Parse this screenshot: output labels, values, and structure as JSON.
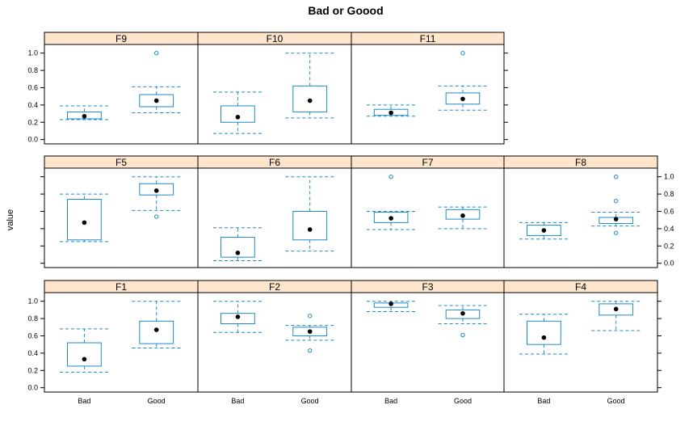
{
  "chart_data": {
    "type": "boxplot",
    "title": "Bad or Goood",
    "ylabel": "value",
    "categories": [
      "Bad",
      "Good"
    ],
    "ylim": [
      -0.05,
      1.1
    ],
    "yticks": [
      0.0,
      0.2,
      0.4,
      0.6,
      0.8,
      1.0
    ],
    "colors": {
      "box": "#1f8ac8",
      "strip": "#ffe5cc",
      "median": "#000000",
      "frame": "#000000"
    },
    "panels": [
      {
        "name": "F1",
        "boxes": [
          {
            "category": "Bad",
            "whisker_low": 0.18,
            "q1": 0.25,
            "q3": 0.52,
            "whisker_high": 0.68,
            "median": 0.33,
            "outliers": []
          },
          {
            "category": "Good",
            "whisker_low": 0.46,
            "q1": 0.51,
            "q3": 0.77,
            "whisker_high": 1.0,
            "median": 0.67,
            "outliers": []
          }
        ]
      },
      {
        "name": "F2",
        "boxes": [
          {
            "category": "Bad",
            "whisker_low": 0.64,
            "q1": 0.74,
            "q3": 0.86,
            "whisker_high": 1.0,
            "median": 0.82,
            "outliers": []
          },
          {
            "category": "Good",
            "whisker_low": 0.55,
            "q1": 0.6,
            "q3": 0.7,
            "whisker_high": 0.72,
            "median": 0.65,
            "outliers": [
              0.83,
              0.43
            ]
          }
        ]
      },
      {
        "name": "F3",
        "boxes": [
          {
            "category": "Bad",
            "whisker_low": 0.88,
            "q1": 0.93,
            "q3": 0.98,
            "whisker_high": 1.0,
            "median": 0.97,
            "outliers": []
          },
          {
            "category": "Good",
            "whisker_low": 0.74,
            "q1": 0.8,
            "q3": 0.9,
            "whisker_high": 0.95,
            "median": 0.86,
            "outliers": [
              0.61
            ]
          }
        ]
      },
      {
        "name": "F4",
        "boxes": [
          {
            "category": "Bad",
            "whisker_low": 0.39,
            "q1": 0.5,
            "q3": 0.77,
            "whisker_high": 0.85,
            "median": 0.58,
            "outliers": []
          },
          {
            "category": "Good",
            "whisker_low": 0.66,
            "q1": 0.84,
            "q3": 0.97,
            "whisker_high": 1.0,
            "median": 0.91,
            "outliers": []
          }
        ]
      },
      {
        "name": "F5",
        "boxes": [
          {
            "category": "Bad",
            "whisker_low": 0.25,
            "q1": 0.27,
            "q3": 0.74,
            "whisker_high": 0.8,
            "median": 0.47,
            "outliers": []
          },
          {
            "category": "Good",
            "whisker_low": 0.61,
            "q1": 0.79,
            "q3": 0.92,
            "whisker_high": 1.0,
            "median": 0.84,
            "outliers": [
              0.54
            ]
          }
        ]
      },
      {
        "name": "F6",
        "boxes": [
          {
            "category": "Bad",
            "whisker_low": 0.03,
            "q1": 0.07,
            "q3": 0.3,
            "whisker_high": 0.41,
            "median": 0.12,
            "outliers": []
          },
          {
            "category": "Good",
            "whisker_low": 0.14,
            "q1": 0.27,
            "q3": 0.6,
            "whisker_high": 1.0,
            "median": 0.39,
            "outliers": []
          }
        ]
      },
      {
        "name": "F7",
        "boxes": [
          {
            "category": "Bad",
            "whisker_low": 0.39,
            "q1": 0.47,
            "q3": 0.59,
            "whisker_high": 0.6,
            "median": 0.52,
            "outliers": [
              1.0
            ]
          },
          {
            "category": "Good",
            "whisker_low": 0.4,
            "q1": 0.51,
            "q3": 0.62,
            "whisker_high": 0.65,
            "median": 0.55,
            "outliers": []
          }
        ]
      },
      {
        "name": "F8",
        "boxes": [
          {
            "category": "Bad",
            "whisker_low": 0.28,
            "q1": 0.32,
            "q3": 0.44,
            "whisker_high": 0.47,
            "median": 0.38,
            "outliers": []
          },
          {
            "category": "Good",
            "whisker_low": 0.43,
            "q1": 0.46,
            "q3": 0.53,
            "whisker_high": 0.59,
            "median": 0.51,
            "outliers": [
              1.0,
              0.72,
              0.35
            ]
          }
        ]
      },
      {
        "name": "F9",
        "boxes": [
          {
            "category": "Bad",
            "whisker_low": 0.23,
            "q1": 0.24,
            "q3": 0.32,
            "whisker_high": 0.39,
            "median": 0.27,
            "outliers": []
          },
          {
            "category": "Good",
            "whisker_low": 0.31,
            "q1": 0.38,
            "q3": 0.52,
            "whisker_high": 0.61,
            "median": 0.45,
            "outliers": [
              1.0
            ]
          }
        ]
      },
      {
        "name": "F10",
        "boxes": [
          {
            "category": "Bad",
            "whisker_low": 0.07,
            "q1": 0.2,
            "q3": 0.39,
            "whisker_high": 0.55,
            "median": 0.26,
            "outliers": []
          },
          {
            "category": "Good",
            "whisker_low": 0.25,
            "q1": 0.32,
            "q3": 0.62,
            "whisker_high": 1.0,
            "median": 0.45,
            "outliers": []
          }
        ]
      },
      {
        "name": "F11",
        "boxes": [
          {
            "category": "Bad",
            "whisker_low": 0.27,
            "q1": 0.28,
            "q3": 0.35,
            "whisker_high": 0.4,
            "median": 0.31,
            "outliers": []
          },
          {
            "category": "Good",
            "whisker_low": 0.34,
            "q1": 0.41,
            "q3": 0.54,
            "whisker_high": 0.62,
            "median": 0.47,
            "outliers": [
              1.0
            ]
          }
        ]
      }
    ]
  }
}
